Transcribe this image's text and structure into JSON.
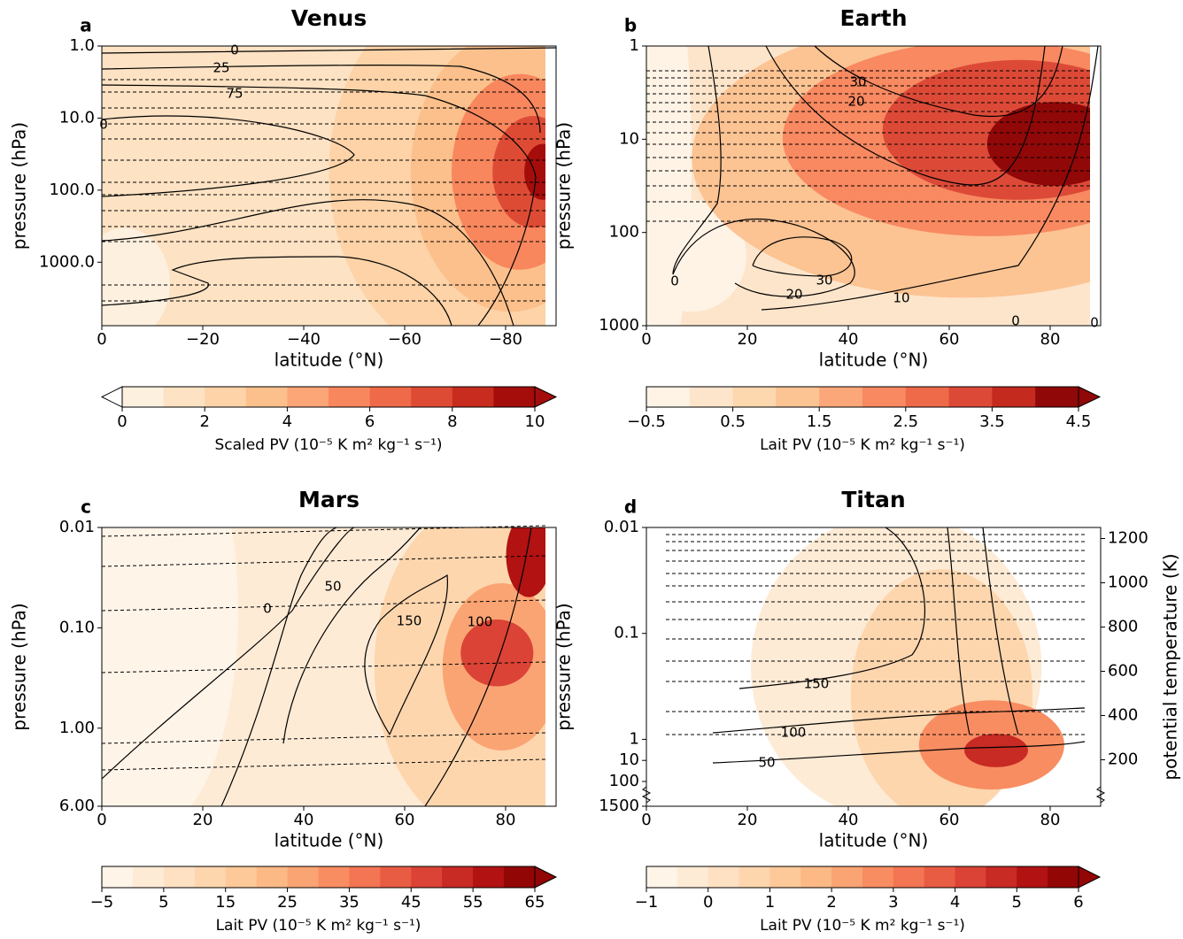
{
  "chart_data": [
    {
      "type": "contour",
      "panel_label": "a",
      "title": "Venus",
      "xlabel": "latitude (°N)",
      "ylabel": "pressure (hPa)",
      "xlim": [
        0,
        -90
      ],
      "xticks": [
        0,
        {
          "value": -20,
          "label": "−20"
        },
        {
          "value": -40,
          "label": "−40"
        },
        {
          "value": -60,
          "label": "−60"
        },
        {
          "value": -80,
          "label": "−80"
        }
      ],
      "yscale": "log",
      "ylim": [
        7600,
        1
      ],
      "yticks": [
        {
          "value": 1,
          "label": "1.0"
        },
        {
          "value": 10,
          "label": "10.0"
        },
        {
          "value": 100,
          "label": "100.0"
        },
        {
          "value": 1000,
          "label": "1000.0"
        }
      ],
      "contour_labels": [
        0,
        25,
        75,
        0
      ],
      "colorbar": {
        "label": "Scaled PV (10⁻⁵ K m² kg⁻¹ s⁻¹)",
        "lim": [
          0,
          10
        ],
        "ticks": [
          0,
          2,
          4,
          6,
          8,
          10
        ],
        "extend": "both",
        "colors": [
          "#fef0df",
          "#fde2c3",
          "#fdd3a7",
          "#fcc08c",
          "#fca577",
          "#f8875e",
          "#ee6a48",
          "#de4b35",
          "#c72c1e",
          "#a50d0b"
        ]
      }
    },
    {
      "type": "contour",
      "panel_label": "b",
      "title": "Earth",
      "xlabel": "latitude (°N)",
      "ylabel": "pressure (hPa)",
      "xlim": [
        0,
        90
      ],
      "xticks": [
        0,
        20,
        40,
        60,
        80
      ],
      "yscale": "log",
      "ylim": [
        1000,
        1
      ],
      "yticks": [
        1,
        10,
        100,
        1000
      ],
      "contour_labels": [
        30,
        20,
        0,
        20,
        30,
        10,
        0,
        0
      ],
      "colorbar": {
        "label": "Lait PV (10⁻⁵ K m² kg⁻¹ s⁻¹)",
        "lim": [
          -0.5,
          4.5
        ],
        "ticks": [
          {
            "value": -0.5,
            "label": "−0.5"
          },
          0.5,
          1.5,
          2.5,
          3.5,
          4.5
        ],
        "extend": "max",
        "colors": [
          "#fff3e6",
          "#fde5cb",
          "#fdd7ae",
          "#fcc393",
          "#fba77a",
          "#f88961",
          "#ee6a49",
          "#dc4a37",
          "#c52a1f",
          "#900808"
        ]
      }
    },
    {
      "type": "contour",
      "panel_label": "c",
      "title": "Mars",
      "xlabel": "latitude (°N)",
      "ylabel": "pressure (hPa)",
      "xlim": [
        0,
        90
      ],
      "xticks": [
        0,
        20,
        40,
        60,
        80
      ],
      "yscale": "log",
      "ylim": [
        6,
        0.01
      ],
      "yticks": [
        0.01,
        {
          "value": 0.1,
          "label": "0.10"
        },
        {
          "value": 1,
          "label": "1.00"
        },
        {
          "value": 6,
          "label": "6.00"
        }
      ],
      "contour_labels": [
        0,
        50,
        150,
        100
      ],
      "colorbar": {
        "label": "Lait PV (10⁻⁵ K m² kg⁻¹ s⁻¹)",
        "lim": [
          -5,
          65
        ],
        "ticks": [
          {
            "value": -5,
            "label": "−5"
          },
          5,
          15,
          25,
          35,
          45,
          55,
          65
        ],
        "extend": "max",
        "colors": [
          "#fff4e8",
          "#feebd6",
          "#fde1c2",
          "#fdd6ae",
          "#fdc999",
          "#fcb986",
          "#fba473",
          "#f88d62",
          "#f37553",
          "#e85c44",
          "#da4335",
          "#c82a24",
          "#b21212",
          "#930606"
        ]
      }
    },
    {
      "type": "contour",
      "panel_label": "d",
      "title": "Titan",
      "xlabel": "latitude (°N)",
      "ylabel": "pressure (hPa)",
      "xlim": [
        0,
        90
      ],
      "xticks": [
        0,
        20,
        40,
        60,
        80
      ],
      "yscale": "log",
      "axis_break": true,
      "ylim": [
        1500,
        0.01
      ],
      "yticks": [
        0.01,
        0.1,
        1,
        10,
        100,
        1500
      ],
      "y2label": "potential temperature (K)",
      "y2lim": [
        -10,
        1250
      ],
      "y2ticks": [
        200,
        400,
        600,
        800,
        1000,
        1200
      ],
      "contour_labels": [
        150,
        100,
        50
      ],
      "colorbar": {
        "label": "Lait PV (10⁻⁵ K m² kg⁻¹ s⁻¹)",
        "lim": [
          -1,
          6
        ],
        "ticks": [
          {
            "value": -1,
            "label": "−1"
          },
          0,
          1,
          2,
          3,
          4,
          5,
          6
        ],
        "extend": "max",
        "colors": [
          "#fff4e8",
          "#feebd6",
          "#fde1c2",
          "#fdd6ae",
          "#fdc999",
          "#fcb986",
          "#fba473",
          "#f88d62",
          "#f37553",
          "#e85c44",
          "#da4335",
          "#c82a24",
          "#b21212",
          "#930606"
        ]
      }
    }
  ]
}
